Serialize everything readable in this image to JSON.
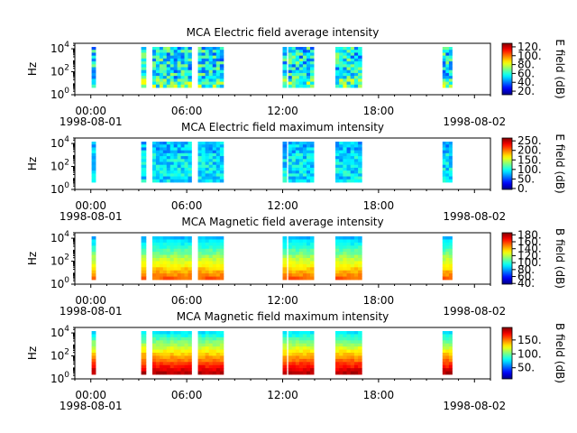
{
  "chart_data": [
    {
      "type": "heatmap",
      "title": "MCA  Electric field average intensity",
      "ylabel": "Hz",
      "yscale": "log",
      "ytick_labels": [
        {
          "base": "10",
          "exp": "0"
        },
        {
          "base": "10",
          "exp": "2"
        },
        {
          "base": "10",
          "exp": "4"
        }
      ],
      "ylim_hz": [
        1,
        30000
      ],
      "xlim": [
        "1998-08-01 00:00",
        "1998-08-02 00:00"
      ],
      "xticks": [
        {
          "label": "00:00",
          "hour": 1,
          "date": "1998-08-01"
        },
        {
          "label": "06:00",
          "hour": 7,
          "date": ""
        },
        {
          "label": "12:00",
          "hour": 13,
          "date": ""
        },
        {
          "label": "18:00",
          "hour": 19,
          "date": ""
        },
        {
          "label": "",
          "hour": 25,
          "date": "1998-08-02"
        }
      ],
      "colorbar": {
        "label": "E field (dB)",
        "ticks": [
          "120.",
          "100.",
          "80.",
          "60.",
          "40.",
          "20."
        ],
        "tick_values": [
          120,
          100,
          80,
          60,
          40,
          20
        ],
        "range": [
          12,
          128
        ]
      },
      "data_blocks_hours": [
        [
          1.05,
          1.3
        ],
        [
          4.15,
          4.45
        ],
        [
          4.85,
          7.3
        ],
        [
          7.7,
          9.3
        ],
        [
          13.0,
          13.25
        ],
        [
          13.35,
          14.95
        ],
        [
          16.3,
          17.95
        ],
        [
          23.0,
          23.6
        ]
      ],
      "typical_level_db": 55
    },
    {
      "type": "heatmap",
      "title": "MCA  Electric field maximum intensity",
      "ylabel": "Hz",
      "yscale": "log",
      "ytick_labels": [
        {
          "base": "10",
          "exp": "0"
        },
        {
          "base": "10",
          "exp": "2"
        },
        {
          "base": "10",
          "exp": "4"
        }
      ],
      "ylim_hz": [
        1,
        30000
      ],
      "xlim": [
        "1998-08-01 00:00",
        "1998-08-02 00:00"
      ],
      "xticks": [
        {
          "label": "00:00",
          "hour": 1,
          "date": "1998-08-01"
        },
        {
          "label": "06:00",
          "hour": 7,
          "date": ""
        },
        {
          "label": "12:00",
          "hour": 13,
          "date": ""
        },
        {
          "label": "18:00",
          "hour": 19,
          "date": ""
        },
        {
          "label": "",
          "hour": 25,
          "date": "1998-08-02"
        }
      ],
      "colorbar": {
        "label": "E field (dB)",
        "ticks": [
          "250.",
          "200.",
          "150.",
          "100.",
          "50.",
          "0."
        ],
        "tick_values": [
          250,
          200,
          150,
          100,
          50,
          0
        ],
        "range": [
          -5,
          265
        ]
      },
      "data_blocks_hours": [
        [
          1.05,
          1.3
        ],
        [
          4.15,
          4.45
        ],
        [
          4.85,
          7.3
        ],
        [
          7.7,
          9.3
        ],
        [
          13.0,
          13.25
        ],
        [
          13.35,
          14.95
        ],
        [
          16.3,
          17.95
        ],
        [
          23.0,
          23.6
        ]
      ],
      "typical_level_db": 90
    },
    {
      "type": "heatmap",
      "title": "MCA  Magnetic field average intensity",
      "ylabel": "Hz",
      "yscale": "log",
      "ytick_labels": [
        {
          "base": "10",
          "exp": "0"
        },
        {
          "base": "10",
          "exp": "2"
        },
        {
          "base": "10",
          "exp": "4"
        }
      ],
      "ylim_hz": [
        1,
        30000
      ],
      "xlim": [
        "1998-08-01 00:00",
        "1998-08-02 00:00"
      ],
      "xticks": [
        {
          "label": "00:00",
          "hour": 1,
          "date": "1998-08-01"
        },
        {
          "label": "06:00",
          "hour": 7,
          "date": ""
        },
        {
          "label": "12:00",
          "hour": 13,
          "date": ""
        },
        {
          "label": "18:00",
          "hour": 19,
          "date": ""
        },
        {
          "label": "",
          "hour": 25,
          "date": "1998-08-02"
        }
      ],
      "colorbar": {
        "label": "B field (dB)",
        "ticks": [
          "180.",
          "160.",
          "140.",
          "120.",
          "100.",
          "80.",
          "60.",
          "40."
        ],
        "tick_values": [
          180,
          160,
          140,
          120,
          100,
          80,
          60,
          40
        ],
        "range": [
          38,
          186
        ]
      },
      "data_blocks_hours": [
        [
          1.05,
          1.3
        ],
        [
          4.15,
          4.45
        ],
        [
          4.85,
          7.3
        ],
        [
          7.7,
          9.3
        ],
        [
          13.0,
          13.25
        ],
        [
          13.35,
          14.95
        ],
        [
          16.3,
          17.95
        ],
        [
          23.0,
          23.6
        ]
      ],
      "typical_level_db": 115
    },
    {
      "type": "heatmap",
      "title": "MCA  Magnetic field maximum intensity",
      "ylabel": "Hz",
      "yscale": "log",
      "ytick_labels": [
        {
          "base": "10",
          "exp": "0"
        },
        {
          "base": "10",
          "exp": "2"
        },
        {
          "base": "10",
          "exp": "4"
        }
      ],
      "ylim_hz": [
        1,
        30000
      ],
      "xlim": [
        "1998-08-01 00:00",
        "1998-08-02 00:00"
      ],
      "xticks": [
        {
          "label": "00:00",
          "hour": 1,
          "date": "1998-08-01"
        },
        {
          "label": "06:00",
          "hour": 7,
          "date": ""
        },
        {
          "label": "12:00",
          "hour": 13,
          "date": ""
        },
        {
          "label": "18:00",
          "hour": 19,
          "date": ""
        },
        {
          "label": "",
          "hour": 25,
          "date": "1998-08-02"
        }
      ],
      "colorbar": {
        "label": "B field (dB)",
        "ticks": [
          "150.",
          "100.",
          "50."
        ],
        "tick_values": [
          150,
          100,
          50
        ],
        "range": [
          10,
          195
        ]
      },
      "data_blocks_hours": [
        [
          1.05,
          1.3
        ],
        [
          4.15,
          4.45
        ],
        [
          4.85,
          7.3
        ],
        [
          7.7,
          9.3
        ],
        [
          13.0,
          13.25
        ],
        [
          13.35,
          14.95
        ],
        [
          16.3,
          17.95
        ],
        [
          23.0,
          23.6
        ]
      ],
      "typical_level_db": 120
    }
  ]
}
